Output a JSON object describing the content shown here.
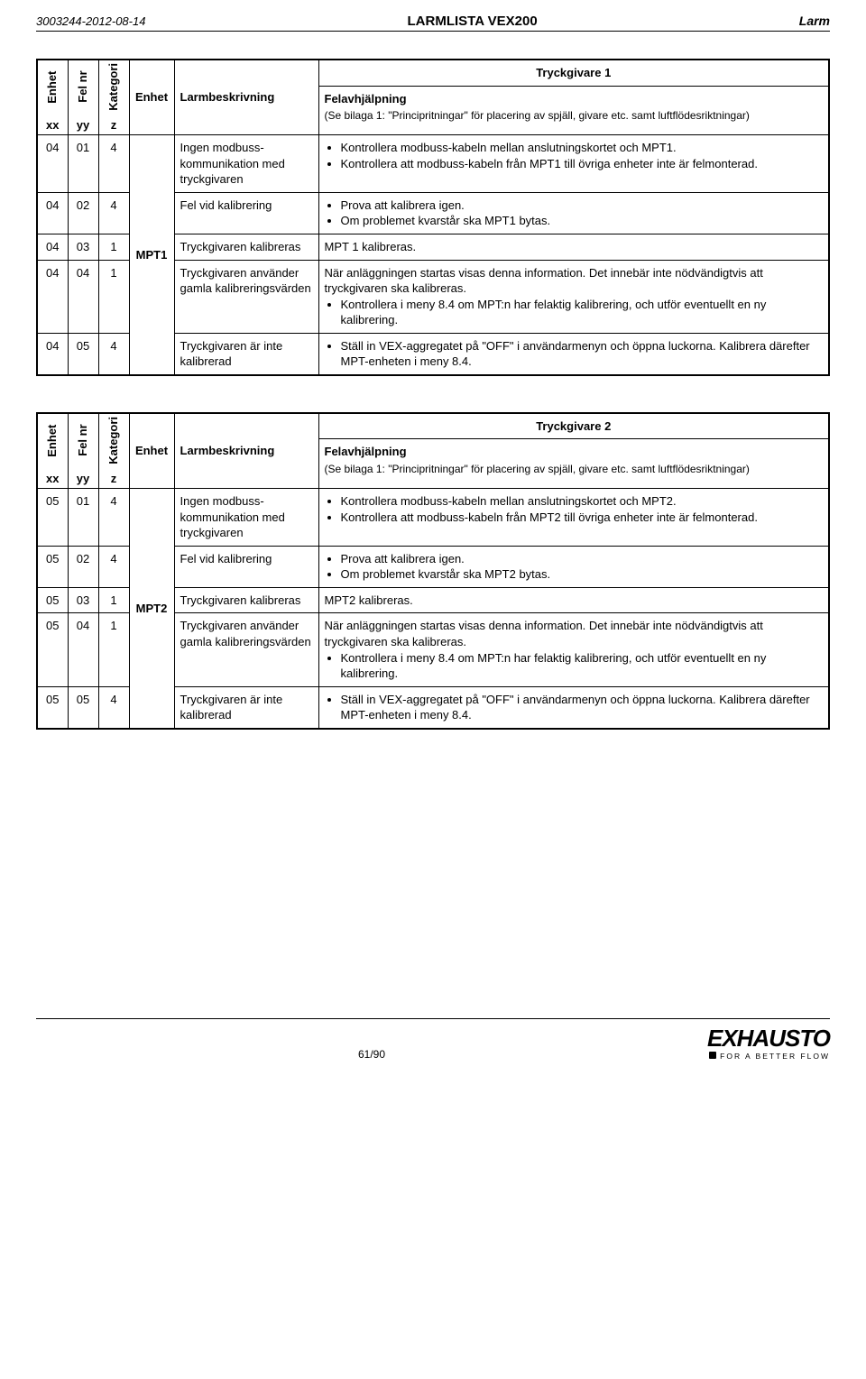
{
  "header": {
    "left": "3003244-2012-08-14",
    "center": "LARMLISTA VEX200",
    "right": "Larm"
  },
  "column_labels": {
    "enhet_v": "Enhet",
    "felnr_v": "Fel nr",
    "kategori_v": "Kategori",
    "xx": "xx",
    "yy": "yy",
    "z": "z",
    "enhet_h": "Enhet",
    "larmbeskrivning": "Larmbeskrivning",
    "fel_title": "Felavhjälpning",
    "fel_sub": "(Se bilaga 1: \"Principritningar\" för placering av spjäll, givare etc. samt luftflödesriktningar)"
  },
  "tables": [
    {
      "title": "Tryckgivare 1",
      "unit": "MPT1",
      "rows": [
        {
          "c": [
            "04",
            "01",
            "4"
          ],
          "desc": "Ingen modbuss-kommunikation med tryckgivaren",
          "help": {
            "bullets": [
              "Kontrollera modbuss-kabeln mellan anslutningskortet och MPT1.",
              "Kontrollera att modbuss-kabeln från MPT1 till övriga enheter inte är felmonterad."
            ]
          }
        },
        {
          "c": [
            "04",
            "02",
            "4"
          ],
          "desc": "Fel vid kalibrering",
          "help": {
            "bullets": [
              "Prova att kalibrera igen.",
              "Om problemet kvarstår ska MPT1 bytas."
            ]
          }
        },
        {
          "c": [
            "04",
            "03",
            "1"
          ],
          "desc": "Tryckgivaren kalibreras",
          "help": {
            "text": "MPT 1 kalibreras."
          }
        },
        {
          "c": [
            "04",
            "04",
            "1"
          ],
          "desc": "Tryckgivaren använder gamla kalibreringsvärden",
          "help": {
            "text": "När anläggningen startas visas denna information. Det innebär inte nödvändigtvis att tryckgivaren ska kalibreras.",
            "bullets": [
              "Kontrollera i meny 8.4 om MPT:n har felaktig kalibrering, och utför eventuellt en ny kalibrering."
            ]
          }
        },
        {
          "c": [
            "04",
            "05",
            "4"
          ],
          "desc": "Tryckgivaren är inte kalibrerad",
          "help": {
            "bullets": [
              "Ställ in VEX-aggregatet på \"OFF\" i användarmenyn och öppna luckorna. Kalibrera därefter MPT-enheten i meny 8.4."
            ]
          }
        }
      ]
    },
    {
      "title": "Tryckgivare 2",
      "unit": "MPT2",
      "rows": [
        {
          "c": [
            "05",
            "01",
            "4"
          ],
          "desc": "Ingen modbuss-kommunikation med tryckgivaren",
          "help": {
            "bullets": [
              "Kontrollera modbuss-kabeln mellan anslutningskortet och MPT2.",
              "Kontrollera att modbuss-kabeln från MPT2 till övriga enheter inte är felmonterad."
            ]
          }
        },
        {
          "c": [
            "05",
            "02",
            "4"
          ],
          "desc": "Fel vid kalibrering",
          "help": {
            "bullets": [
              "Prova att kalibrera igen.",
              "Om problemet kvarstår ska MPT2 bytas."
            ]
          }
        },
        {
          "c": [
            "05",
            "03",
            "1"
          ],
          "desc": "Tryckgivaren kalibreras",
          "help": {
            "text": "MPT2 kalibreras."
          }
        },
        {
          "c": [
            "05",
            "04",
            "1"
          ],
          "desc": "Tryckgivaren använder gamla kalibreringsvärden",
          "help": {
            "text": "När anläggningen startas visas denna information. Det innebär inte nödvändigtvis att tryckgivaren ska kalibreras.",
            "bullets": [
              "Kontrollera i meny 8.4 om MPT:n har felaktig kalibrering, och utför eventuellt en ny kalibrering."
            ]
          }
        },
        {
          "c": [
            "05",
            "05",
            "4"
          ],
          "desc": "Tryckgivaren är inte kalibrerad",
          "help": {
            "bullets": [
              "Ställ in VEX-aggregatet på \"OFF\" i användarmenyn och öppna luckorna. Kalibrera därefter MPT-enheten i meny 8.4."
            ]
          }
        }
      ]
    }
  ],
  "footer": {
    "page": "61/90",
    "logo": "EXHAUSTO",
    "tagline": "FOR A BETTER FLOW"
  }
}
